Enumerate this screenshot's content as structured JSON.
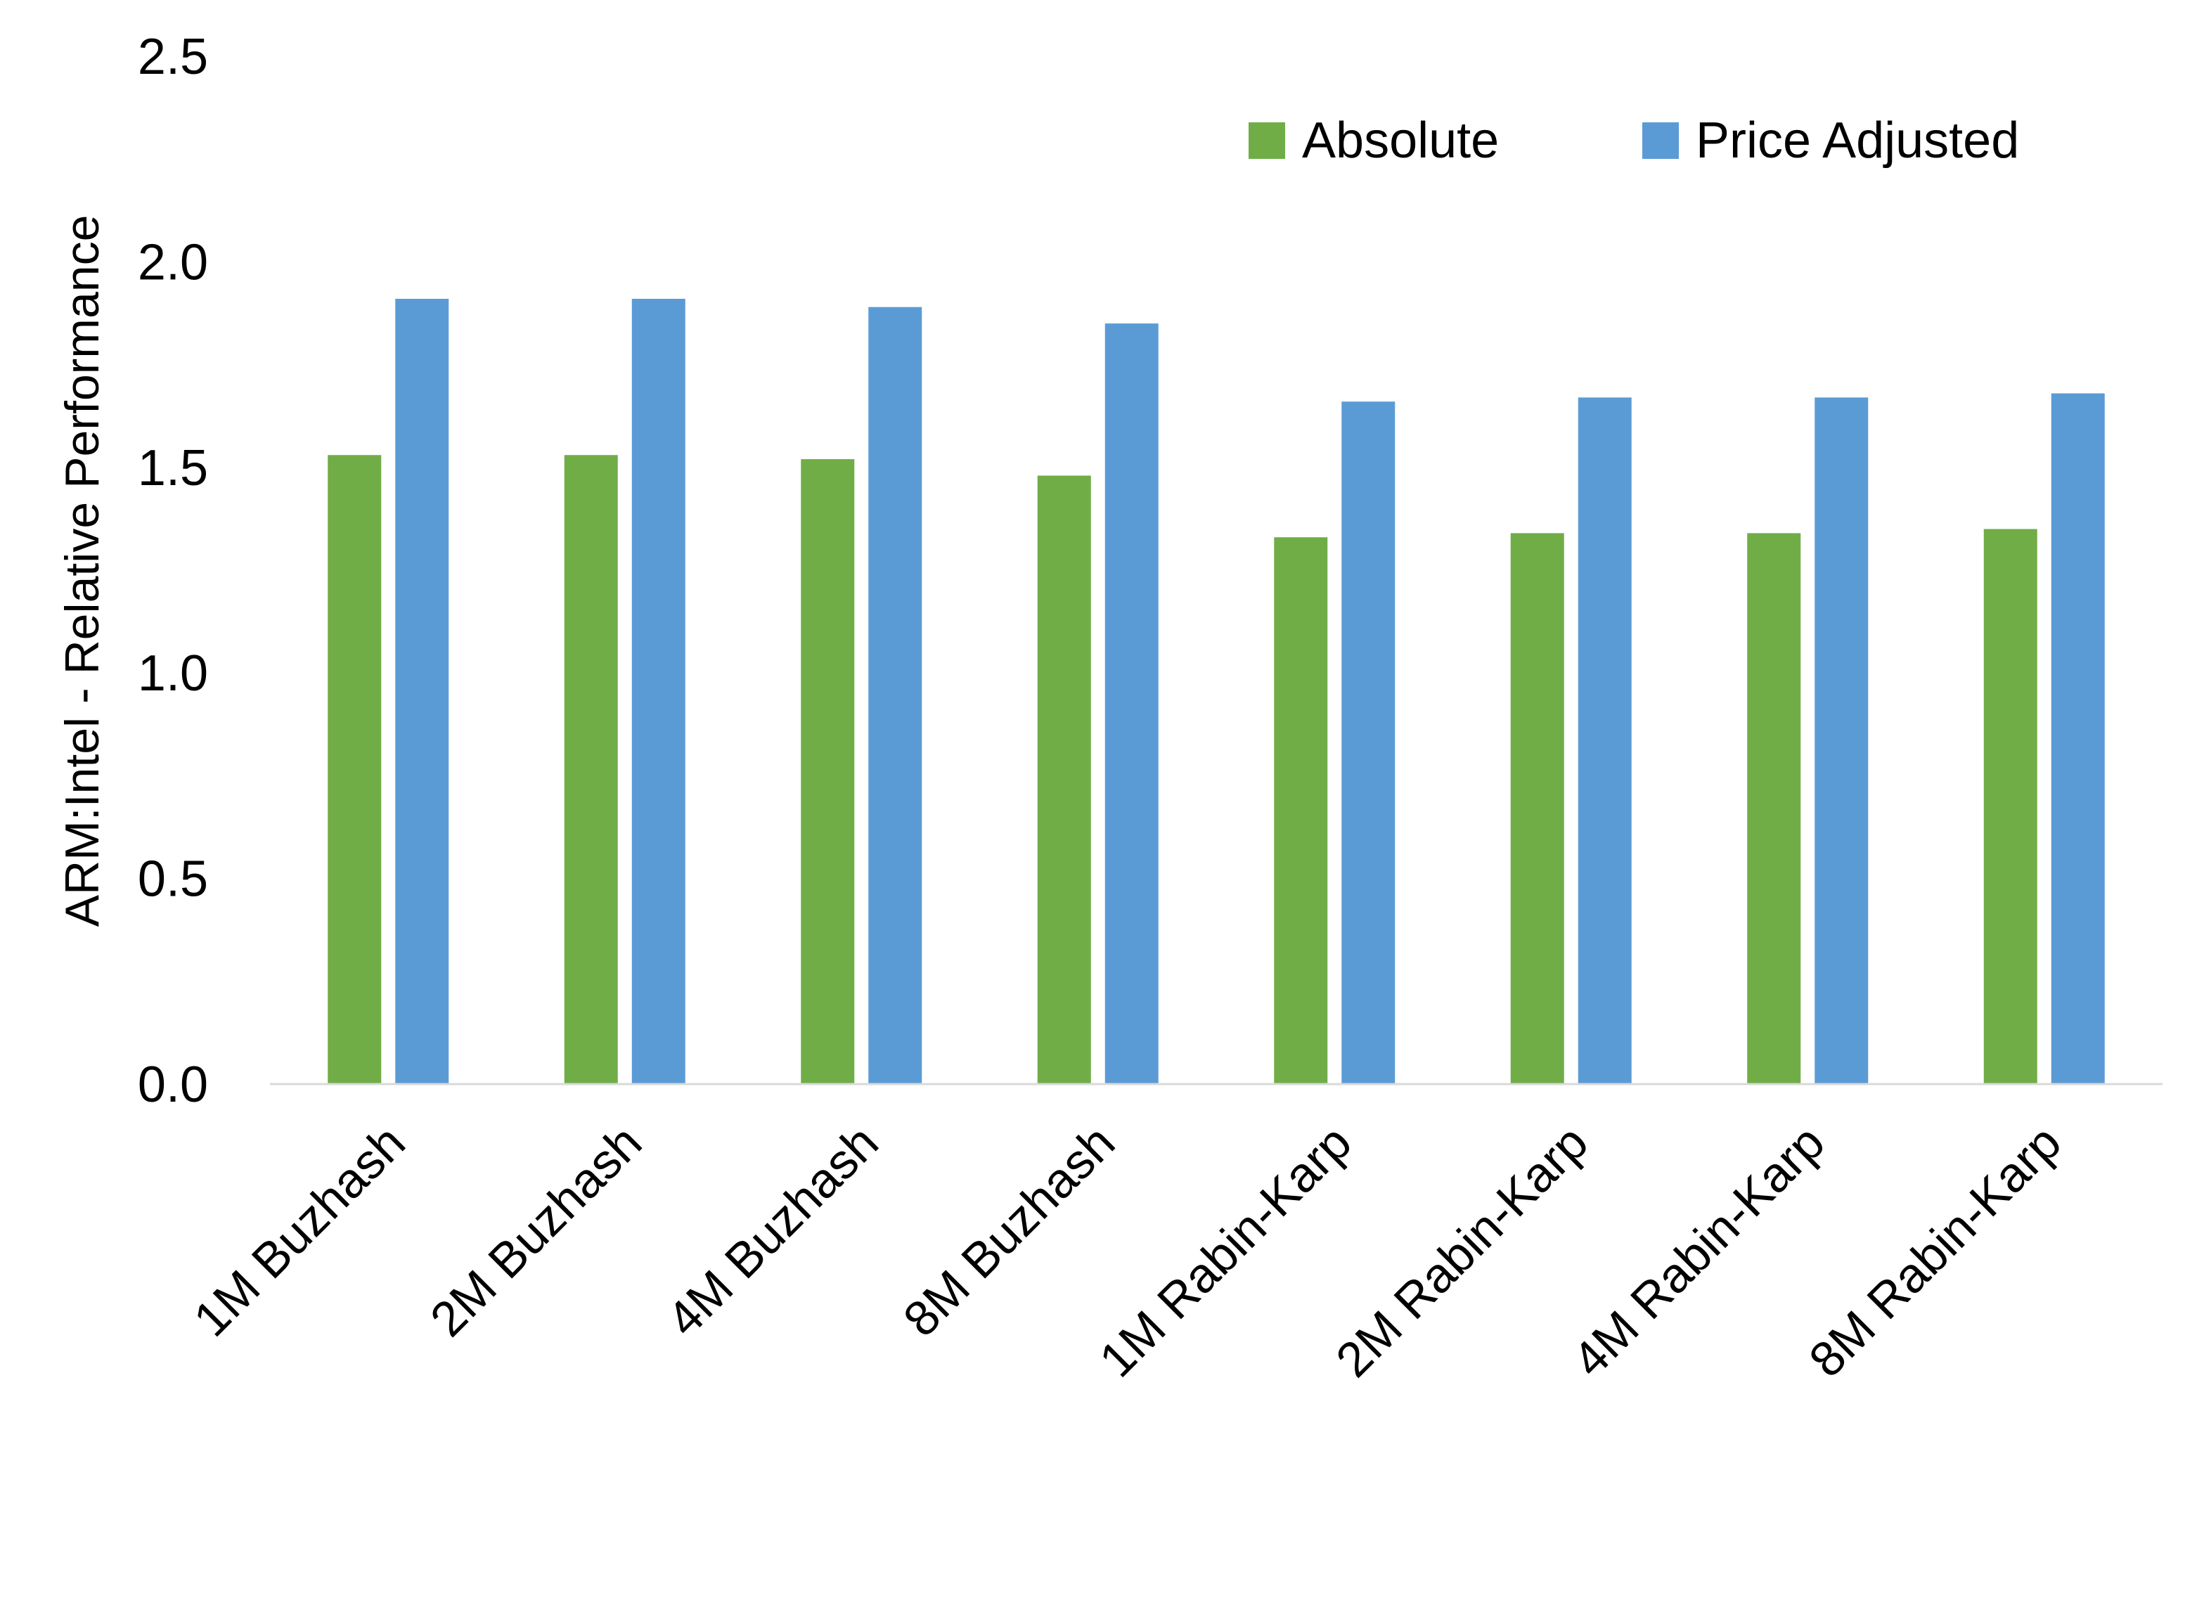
{
  "chart_data": {
    "type": "bar",
    "title": "",
    "xlabel": "",
    "ylabel": "ARM:Intel - Relative Performance",
    "ylim": [
      0,
      2.5
    ],
    "yticks": [
      "0.0",
      "0.5",
      "1.0",
      "1.5",
      "2.0",
      "2.5"
    ],
    "grid": false,
    "legend_position": "top-right",
    "categories": [
      "1M Buzhash",
      "2M Buzhash",
      "4M Buzhash",
      "8M Buzhash",
      "1M Rabin-Karp",
      "2M Rabin-Karp",
      "4M Rabin-Karp",
      "8M Rabin-Karp"
    ],
    "series": [
      {
        "name": "Absolute",
        "color": "#70AD47",
        "values": [
          1.53,
          1.53,
          1.52,
          1.48,
          1.33,
          1.34,
          1.34,
          1.35
        ]
      },
      {
        "name": "Price Adjusted",
        "color": "#5B9BD5",
        "values": [
          1.91,
          1.91,
          1.89,
          1.85,
          1.66,
          1.67,
          1.67,
          1.68
        ]
      }
    ]
  }
}
